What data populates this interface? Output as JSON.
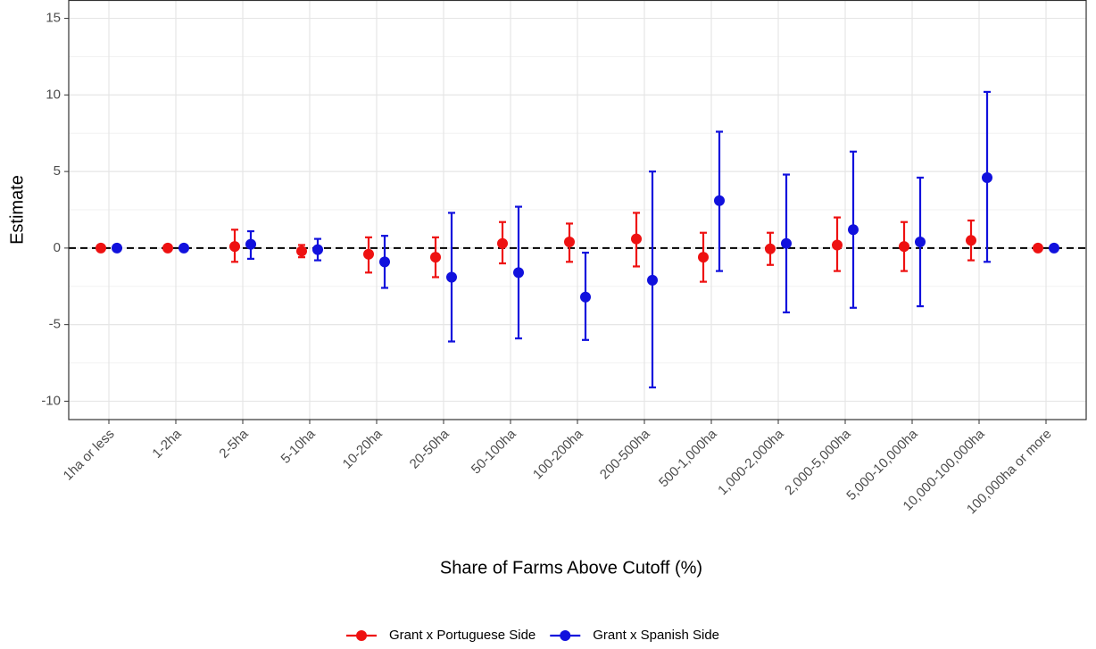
{
  "chart_data": {
    "type": "errorbar",
    "xlabel": "Share of Farms Above Cutoff (%)",
    "ylabel": "Estimate",
    "categories": [
      "1ha or less",
      "1-2ha",
      "2-5ha",
      "5-10ha",
      "10-20ha",
      "20-50ha",
      "50-100ha",
      "100-200ha",
      "200-500ha",
      "500-1,000ha",
      "1,000-2,000ha",
      "2,000-5,000ha",
      "5,000-10,000ha",
      "10,000-100,000ha",
      "100,000ha or more"
    ],
    "series": [
      {
        "name": "Grant x Portuguese Side",
        "color": "#ee1111",
        "values": [
          0,
          0,
          0.1,
          -0.2,
          -0.4,
          -0.6,
          0.3,
          0.4,
          0.6,
          -0.6,
          -0.05,
          0.2,
          0.1,
          0.5,
          0
        ],
        "lower": [
          null,
          null,
          -0.9,
          -0.6,
          -1.6,
          -1.9,
          -1.0,
          -0.9,
          -1.2,
          -2.2,
          -1.1,
          -1.5,
          -1.5,
          -0.8,
          null
        ],
        "upper": [
          null,
          null,
          1.2,
          0.2,
          0.7,
          0.7,
          1.7,
          1.6,
          2.3,
          1.0,
          1.0,
          2.0,
          1.7,
          1.8,
          null
        ]
      },
      {
        "name": "Grant x Spanish Side",
        "color": "#1111dd",
        "values": [
          0,
          0,
          0.25,
          -0.1,
          -0.9,
          -1.9,
          -1.6,
          -3.2,
          -2.1,
          3.1,
          0.3,
          1.2,
          0.4,
          4.6,
          0
        ],
        "lower": [
          null,
          null,
          -0.7,
          -0.8,
          -2.6,
          -6.1,
          -5.9,
          -6.0,
          -9.1,
          -1.5,
          -4.2,
          -3.9,
          -3.8,
          -0.9,
          null
        ],
        "upper": [
          null,
          null,
          1.1,
          0.6,
          0.8,
          2.3,
          2.7,
          -0.3,
          5.0,
          7.6,
          4.8,
          6.3,
          4.6,
          10.2,
          null
        ]
      }
    ],
    "hline": 0,
    "ylim": [
      -11.2,
      16.2
    ],
    "yticks": [
      -10,
      -5,
      0,
      5,
      10,
      15
    ],
    "grid": true,
    "legend": "bottom"
  }
}
